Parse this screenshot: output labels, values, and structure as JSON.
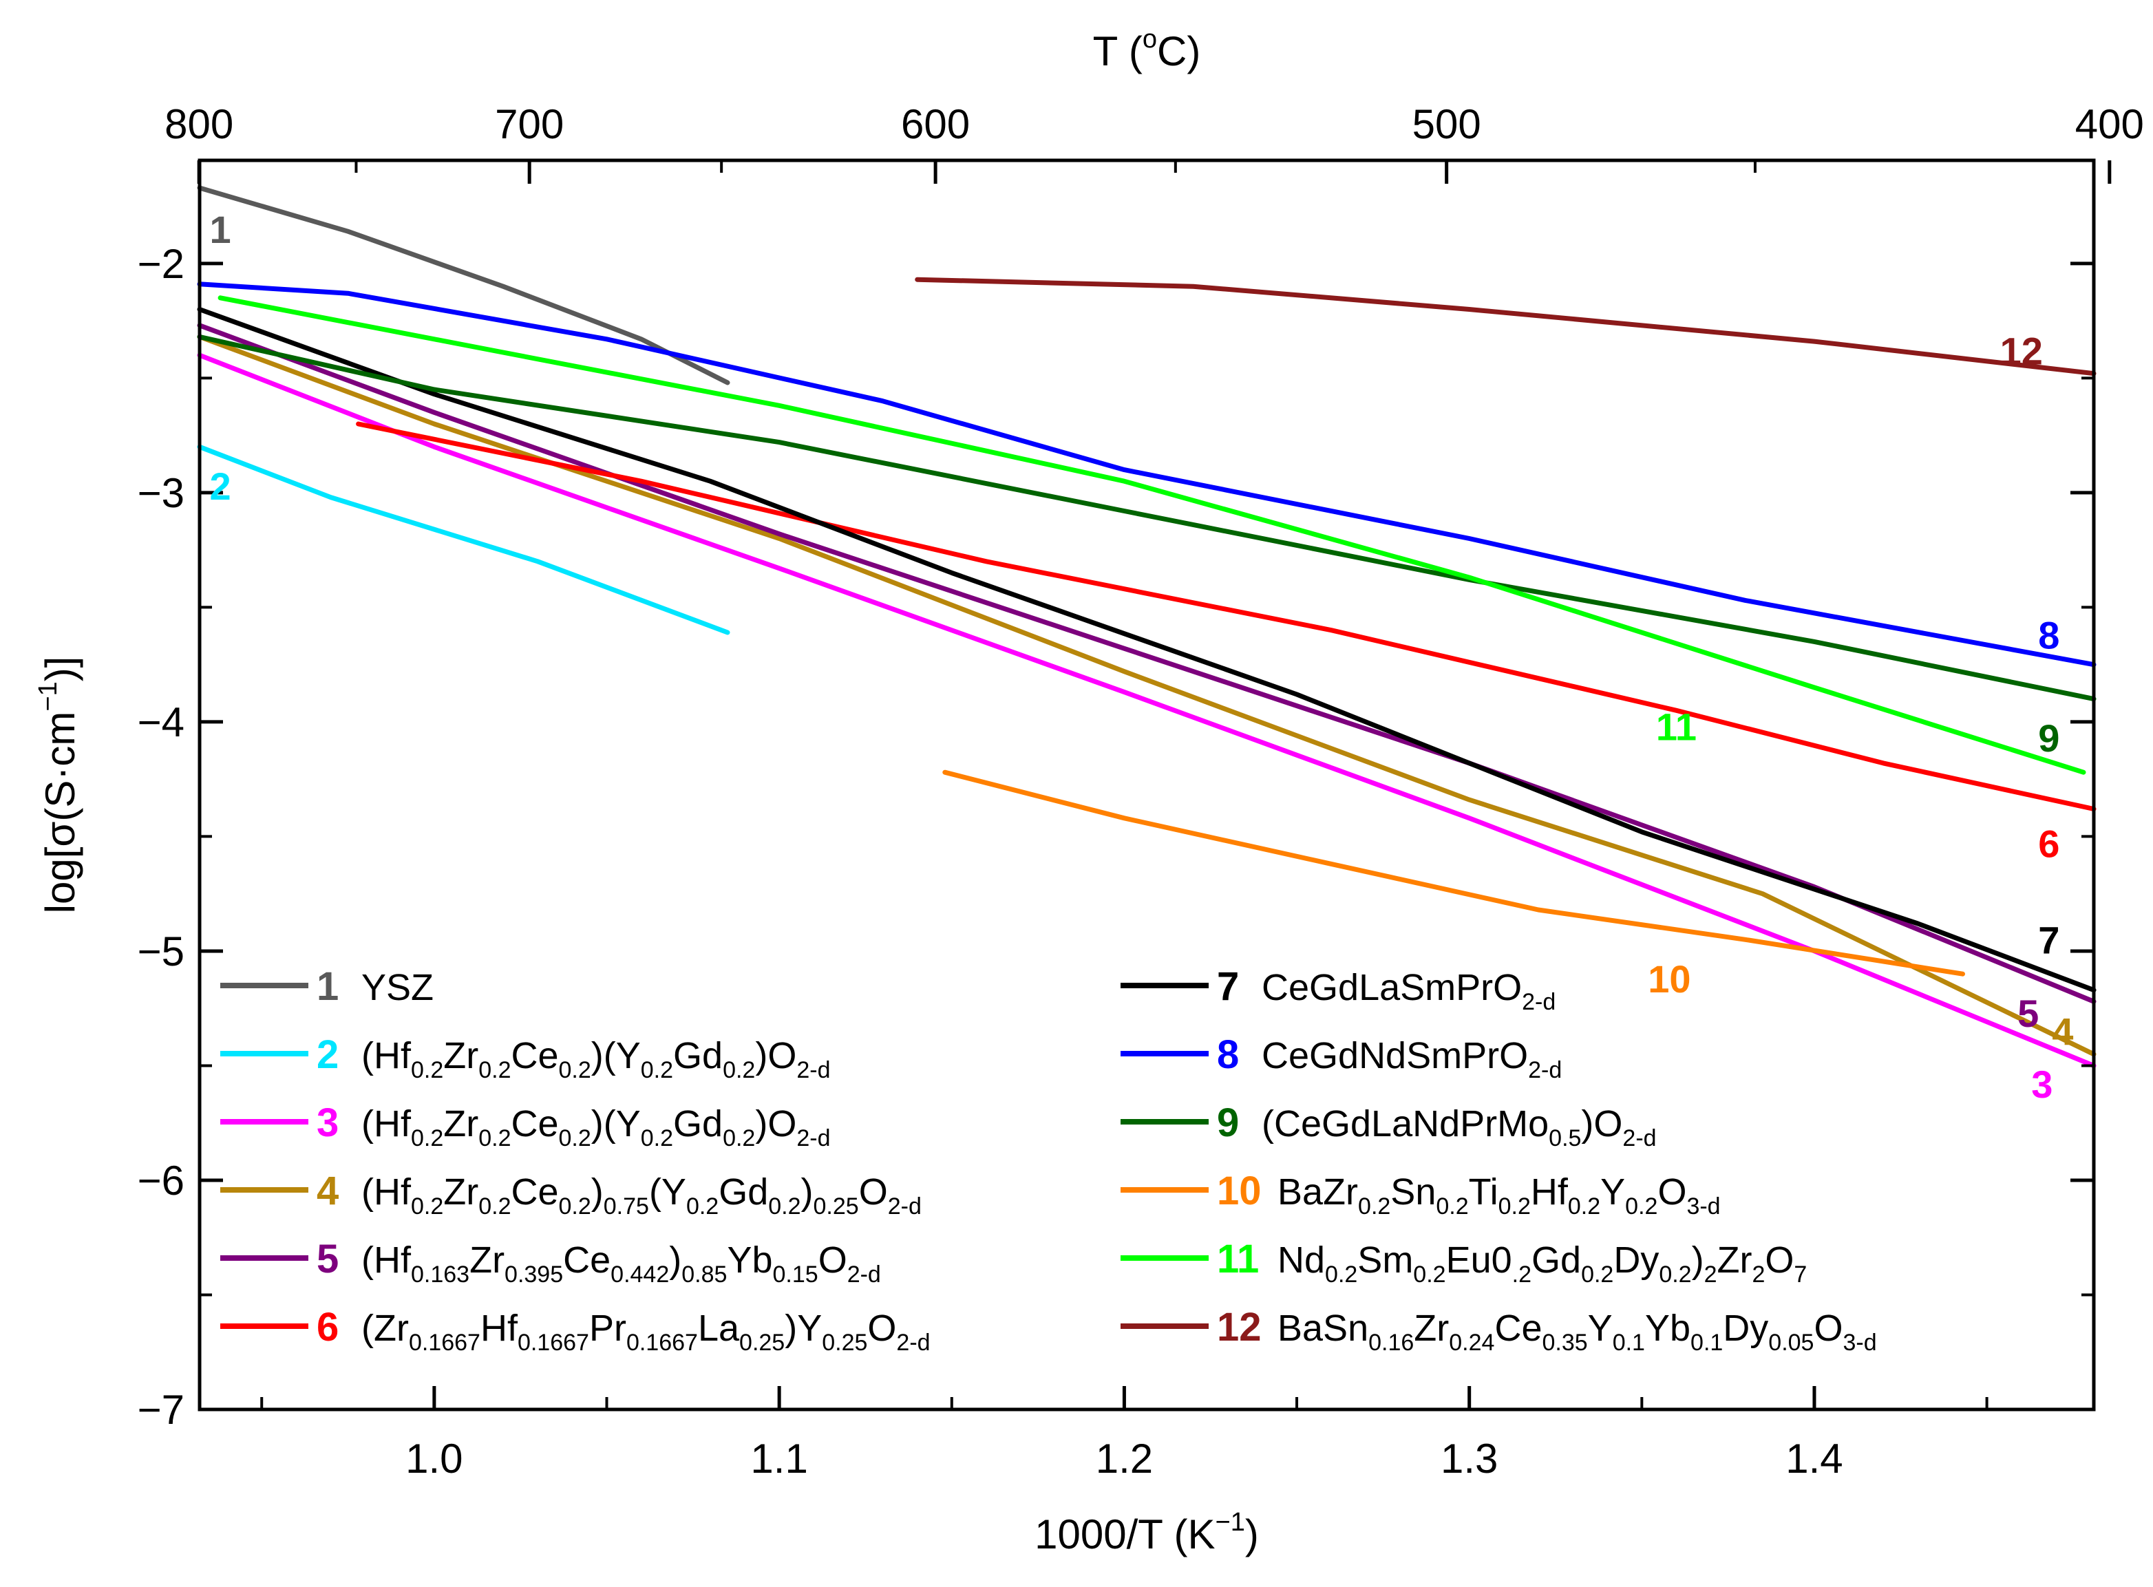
{
  "chart_data": {
    "type": "line",
    "xlabel": "1000/T (K",
    "xlabel_sup": "−1",
    "xlabel_close": ")",
    "ylabel": "log[σ(S·cm",
    "ylabel_sup": "−1",
    "ylabel_close": ")]",
    "top_axis_label": "T (°C)",
    "top_axis_deg": "o",
    "xlim": [
      0.932,
      1.481
    ],
    "ylim": [
      -7,
      -1.55
    ],
    "x_ticks": [
      {
        "v": 1.0,
        "label": "1.0"
      },
      {
        "v": 1.1,
        "label": "1.1"
      },
      {
        "v": 1.2,
        "label": "1.2"
      },
      {
        "v": 1.3,
        "label": "1.3"
      },
      {
        "v": 1.4,
        "label": "1.4"
      }
    ],
    "y_ticks": [
      {
        "v": -2,
        "label": "−2"
      },
      {
        "v": -3,
        "label": "−3"
      },
      {
        "v": -4,
        "label": "−4"
      },
      {
        "v": -5,
        "label": "−5"
      },
      {
        "v": -6,
        "label": "−6"
      },
      {
        "v": -7,
        "label": "−7"
      }
    ],
    "top_ticks": [
      {
        "c": 800,
        "label": "800"
      },
      {
        "c": 700,
        "label": "700"
      },
      {
        "c": 600,
        "label": "600"
      },
      {
        "c": 500,
        "label": "500"
      },
      {
        "c": 400,
        "label": "400"
      }
    ],
    "top_minor": [
      750,
      650,
      550,
      450
    ],
    "grid": false,
    "legend_position": "bottom",
    "series": [
      {
        "id": "1",
        "color": "#595959",
        "label_x": 0.938,
        "label_y": -1.85,
        "legend": [
          {
            "t": "YSZ"
          }
        ],
        "points": [
          [
            0.932,
            -1.67
          ],
          [
            0.975,
            -1.86
          ],
          [
            1.02,
            -2.1
          ],
          [
            1.06,
            -2.33
          ],
          [
            1.085,
            -2.52
          ]
        ]
      },
      {
        "id": "2",
        "color": "#00e5ff",
        "label_x": 0.938,
        "label_y": -2.97,
        "legend": [
          {
            "t": "(Hf"
          },
          {
            "t": "0.2",
            "sub": true
          },
          {
            "t": "Zr"
          },
          {
            "t": "0.2",
            "sub": true
          },
          {
            "t": "Ce"
          },
          {
            "t": "0.2",
            "sub": true
          },
          {
            "t": ")(Y"
          },
          {
            "t": "0.2",
            "sub": true
          },
          {
            "t": "Gd"
          },
          {
            "t": "0.2",
            "sub": true
          },
          {
            "t": ")O"
          },
          {
            "t": "2-d",
            "sub": true
          }
        ],
        "points": [
          [
            0.932,
            -2.8
          ],
          [
            0.97,
            -3.02
          ],
          [
            1.03,
            -3.3
          ],
          [
            1.085,
            -3.61
          ]
        ]
      },
      {
        "id": "3",
        "color": "#ff00ff",
        "label_x": 1.466,
        "label_y": -5.58,
        "legend": [
          {
            "t": "(Hf"
          },
          {
            "t": "0.2",
            "sub": true
          },
          {
            "t": "Zr"
          },
          {
            "t": "0.2",
            "sub": true
          },
          {
            "t": "Ce"
          },
          {
            "t": "0.2",
            "sub": true
          },
          {
            "t": ")(Y"
          },
          {
            "t": "0.2",
            "sub": true
          },
          {
            "t": "Gd"
          },
          {
            "t": "0.2",
            "sub": true
          },
          {
            "t": ")O"
          },
          {
            "t": "2-d",
            "sub": true
          }
        ],
        "points": [
          [
            0.932,
            -2.4
          ],
          [
            1.0,
            -2.8
          ],
          [
            1.1,
            -3.33
          ],
          [
            1.2,
            -3.87
          ],
          [
            1.3,
            -4.42
          ],
          [
            1.4,
            -5.0
          ],
          [
            1.481,
            -5.5
          ]
        ]
      },
      {
        "id": "4",
        "color": "#b8860b",
        "label_x": 1.472,
        "label_y": -5.35,
        "legend": [
          {
            "t": "(Hf"
          },
          {
            "t": "0.2",
            "sub": true
          },
          {
            "t": "Zr"
          },
          {
            "t": "0.2",
            "sub": true
          },
          {
            "t": "Ce"
          },
          {
            "t": "0.2",
            "sub": true
          },
          {
            "t": ")"
          },
          {
            "t": "0.75",
            "sub": true
          },
          {
            "t": "(Y"
          },
          {
            "t": "0.2",
            "sub": true
          },
          {
            "t": "Gd"
          },
          {
            "t": "0.2",
            "sub": true
          },
          {
            "t": ")"
          },
          {
            "t": "0.25",
            "sub": true
          },
          {
            "t": "O"
          },
          {
            "t": "2-d",
            "sub": true
          }
        ],
        "points": [
          [
            0.932,
            -2.32
          ],
          [
            1.0,
            -2.7
          ],
          [
            1.1,
            -3.2
          ],
          [
            1.2,
            -3.78
          ],
          [
            1.3,
            -4.34
          ],
          [
            1.385,
            -4.75
          ],
          [
            1.481,
            -5.45
          ]
        ]
      },
      {
        "id": "5",
        "color": "#7d007d",
        "label_x": 1.462,
        "label_y": -5.27,
        "legend": [
          {
            "t": "(Hf"
          },
          {
            "t": "0.163",
            "sub": true
          },
          {
            "t": "Zr"
          },
          {
            "t": "0.395",
            "sub": true
          },
          {
            "t": "Ce"
          },
          {
            "t": "0.442",
            "sub": true
          },
          {
            "t": ")"
          },
          {
            "t": "0.85",
            "sub": true
          },
          {
            "t": "Yb"
          },
          {
            "t": "0.15",
            "sub": true
          },
          {
            "t": "O"
          },
          {
            "t": "2-d",
            "sub": true
          }
        ],
        "points": [
          [
            0.932,
            -2.27
          ],
          [
            1.0,
            -2.65
          ],
          [
            1.1,
            -3.18
          ],
          [
            1.2,
            -3.68
          ],
          [
            1.3,
            -4.18
          ],
          [
            1.4,
            -4.72
          ],
          [
            1.481,
            -5.22
          ]
        ]
      },
      {
        "id": "6",
        "color": "#ff0000",
        "label_x": 1.468,
        "label_y": -4.53,
        "legend": [
          {
            "t": "(Zr"
          },
          {
            "t": "0.1667",
            "sub": true
          },
          {
            "t": "Hf"
          },
          {
            "t": "0.1667",
            "sub": true
          },
          {
            "t": "Pr"
          },
          {
            "t": "0.1667",
            "sub": true
          },
          {
            "t": "La"
          },
          {
            "t": "0.25",
            "sub": true
          },
          {
            "t": ")Y"
          },
          {
            "t": "0.25",
            "sub": true
          },
          {
            "t": "O"
          },
          {
            "t": "2-d",
            "sub": true
          }
        ],
        "points": [
          [
            0.978,
            -2.7
          ],
          [
            1.06,
            -2.95
          ],
          [
            1.16,
            -3.3
          ],
          [
            1.26,
            -3.6
          ],
          [
            1.36,
            -3.95
          ],
          [
            1.42,
            -4.18
          ],
          [
            1.481,
            -4.38
          ]
        ]
      },
      {
        "id": "7",
        "color": "#000000",
        "label_x": 1.468,
        "label_y": -4.95,
        "legend": [
          {
            "t": "CeGdLaSmPrO"
          },
          {
            "t": "2-d",
            "sub": true
          }
        ],
        "points": [
          [
            0.932,
            -2.2
          ],
          [
            1.0,
            -2.57
          ],
          [
            1.08,
            -2.95
          ],
          [
            1.15,
            -3.35
          ],
          [
            1.25,
            -3.88
          ],
          [
            1.35,
            -4.48
          ],
          [
            1.43,
            -4.88
          ],
          [
            1.481,
            -5.17
          ]
        ]
      },
      {
        "id": "8",
        "color": "#0000ff",
        "label_x": 1.468,
        "label_y": -3.62,
        "legend": [
          {
            "t": "CeGdNdSmPrO"
          },
          {
            "t": "2-d",
            "sub": true
          }
        ],
        "points": [
          [
            0.932,
            -2.09
          ],
          [
            0.975,
            -2.13
          ],
          [
            1.05,
            -2.33
          ],
          [
            1.13,
            -2.6
          ],
          [
            1.2,
            -2.9
          ],
          [
            1.3,
            -3.2
          ],
          [
            1.38,
            -3.47
          ],
          [
            1.481,
            -3.75
          ]
        ]
      },
      {
        "id": "9",
        "color": "#006400",
        "label_x": 1.468,
        "label_y": -4.07,
        "legend": [
          {
            "t": "(CeGdLaNdPrMo"
          },
          {
            "t": "0.5",
            "sub": true
          },
          {
            "t": ")O"
          },
          {
            "t": "2-d",
            "sub": true
          }
        ],
        "points": [
          [
            0.932,
            -2.32
          ],
          [
            1.0,
            -2.55
          ],
          [
            1.1,
            -2.78
          ],
          [
            1.2,
            -3.08
          ],
          [
            1.3,
            -3.38
          ],
          [
            1.4,
            -3.65
          ],
          [
            1.481,
            -3.9
          ]
        ]
      },
      {
        "id": "10",
        "color": "#ff8000",
        "label_x": 1.358,
        "label_y": -5.12,
        "legend": [
          {
            "t": "BaZr"
          },
          {
            "t": "0.2",
            "sub": true
          },
          {
            "t": "Sn"
          },
          {
            "t": "0.2",
            "sub": true
          },
          {
            "t": "Ti"
          },
          {
            "t": "0.2",
            "sub": true
          },
          {
            "t": "Hf"
          },
          {
            "t": "0.2",
            "sub": true
          },
          {
            "t": "Y"
          },
          {
            "t": "0.2",
            "sub": true
          },
          {
            "t": "O"
          },
          {
            "t": "3-d",
            "sub": true
          }
        ],
        "points": [
          [
            1.148,
            -4.22
          ],
          [
            1.2,
            -4.42
          ],
          [
            1.26,
            -4.62
          ],
          [
            1.32,
            -4.82
          ],
          [
            1.38,
            -4.95
          ],
          [
            1.443,
            -5.1
          ]
        ]
      },
      {
        "id": "11",
        "color": "#00ff00",
        "label_x": 1.36,
        "label_y": -4.02,
        "legend": [
          {
            "t": "Nd"
          },
          {
            "t": "0.2",
            "sub": true
          },
          {
            "t": "Sm"
          },
          {
            "t": "0.2",
            "sub": true
          },
          {
            "t": "Eu0"
          },
          {
            "t": ".2",
            "sub": true
          },
          {
            "t": "Gd"
          },
          {
            "t": "0.2",
            "sub": true
          },
          {
            "t": "Dy"
          },
          {
            "t": "0.2",
            "sub": true
          },
          {
            "t": ")"
          },
          {
            "t": "2",
            "sub": true
          },
          {
            "t": "Zr"
          },
          {
            "t": "2",
            "sub": true
          },
          {
            "t": "O"
          },
          {
            "t": "7",
            "sub": true
          }
        ],
        "points": [
          [
            0.938,
            -2.15
          ],
          [
            1.0,
            -2.33
          ],
          [
            1.1,
            -2.62
          ],
          [
            1.2,
            -2.95
          ],
          [
            1.3,
            -3.37
          ],
          [
            1.4,
            -3.85
          ],
          [
            1.478,
            -4.22
          ]
        ]
      },
      {
        "id": "12",
        "color": "#8b1a1a",
        "label_x": 1.46,
        "label_y": -2.38,
        "legend": [
          {
            "t": "BaSn"
          },
          {
            "t": "0.16",
            "sub": true
          },
          {
            "t": "Zr"
          },
          {
            "t": "0.24",
            "sub": true
          },
          {
            "t": "Ce"
          },
          {
            "t": "0.35",
            "sub": true
          },
          {
            "t": "Y"
          },
          {
            "t": "0.1",
            "sub": true
          },
          {
            "t": "Yb"
          },
          {
            "t": "0.1",
            "sub": true
          },
          {
            "t": "Dy"
          },
          {
            "t": "0.05",
            "sub": true
          },
          {
            "t": "O"
          },
          {
            "t": "3-d",
            "sub": true
          }
        ],
        "points": [
          [
            1.14,
            -2.07
          ],
          [
            1.22,
            -2.1
          ],
          [
            1.3,
            -2.2
          ],
          [
            1.4,
            -2.34
          ],
          [
            1.481,
            -2.48
          ]
        ]
      }
    ]
  }
}
